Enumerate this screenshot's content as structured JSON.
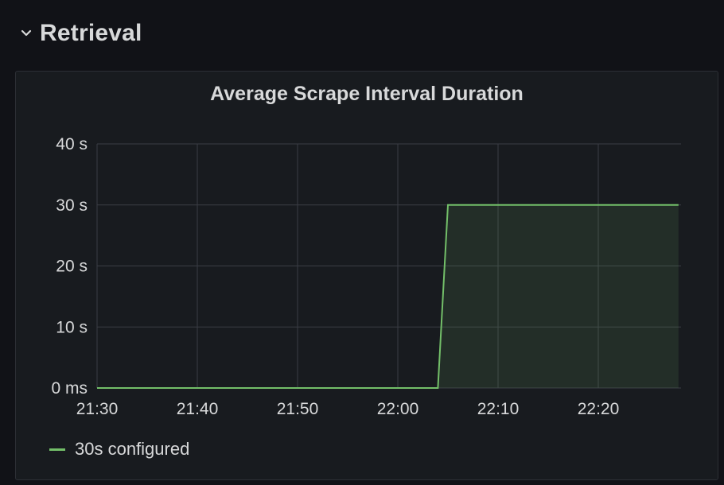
{
  "row": {
    "title": "Retrieval"
  },
  "panel": {
    "title": "Average Scrape Interval Duration"
  },
  "chart_data": {
    "type": "line",
    "title": "Average Scrape Interval Duration",
    "xlabel": "",
    "ylabel": "",
    "x_ticks": [
      "21:30",
      "21:40",
      "21:50",
      "22:00",
      "22:10",
      "22:20"
    ],
    "y_ticks": [
      "0 ms",
      "10 s",
      "20 s",
      "30 s",
      "40 s"
    ],
    "x_domain": [
      "21:30",
      "22:28"
    ],
    "ylim": [
      0,
      40
    ],
    "y_unit": "s",
    "grid": true,
    "legend_position": "bottom-left",
    "series": [
      {
        "name": "30s configured",
        "color": "#73bf69",
        "fill": true,
        "points": [
          {
            "x": "21:30",
            "y": 0
          },
          {
            "x": "22:04",
            "y": 0
          },
          {
            "x": "22:05",
            "y": 30
          },
          {
            "x": "22:28",
            "y": 30
          }
        ]
      }
    ]
  }
}
